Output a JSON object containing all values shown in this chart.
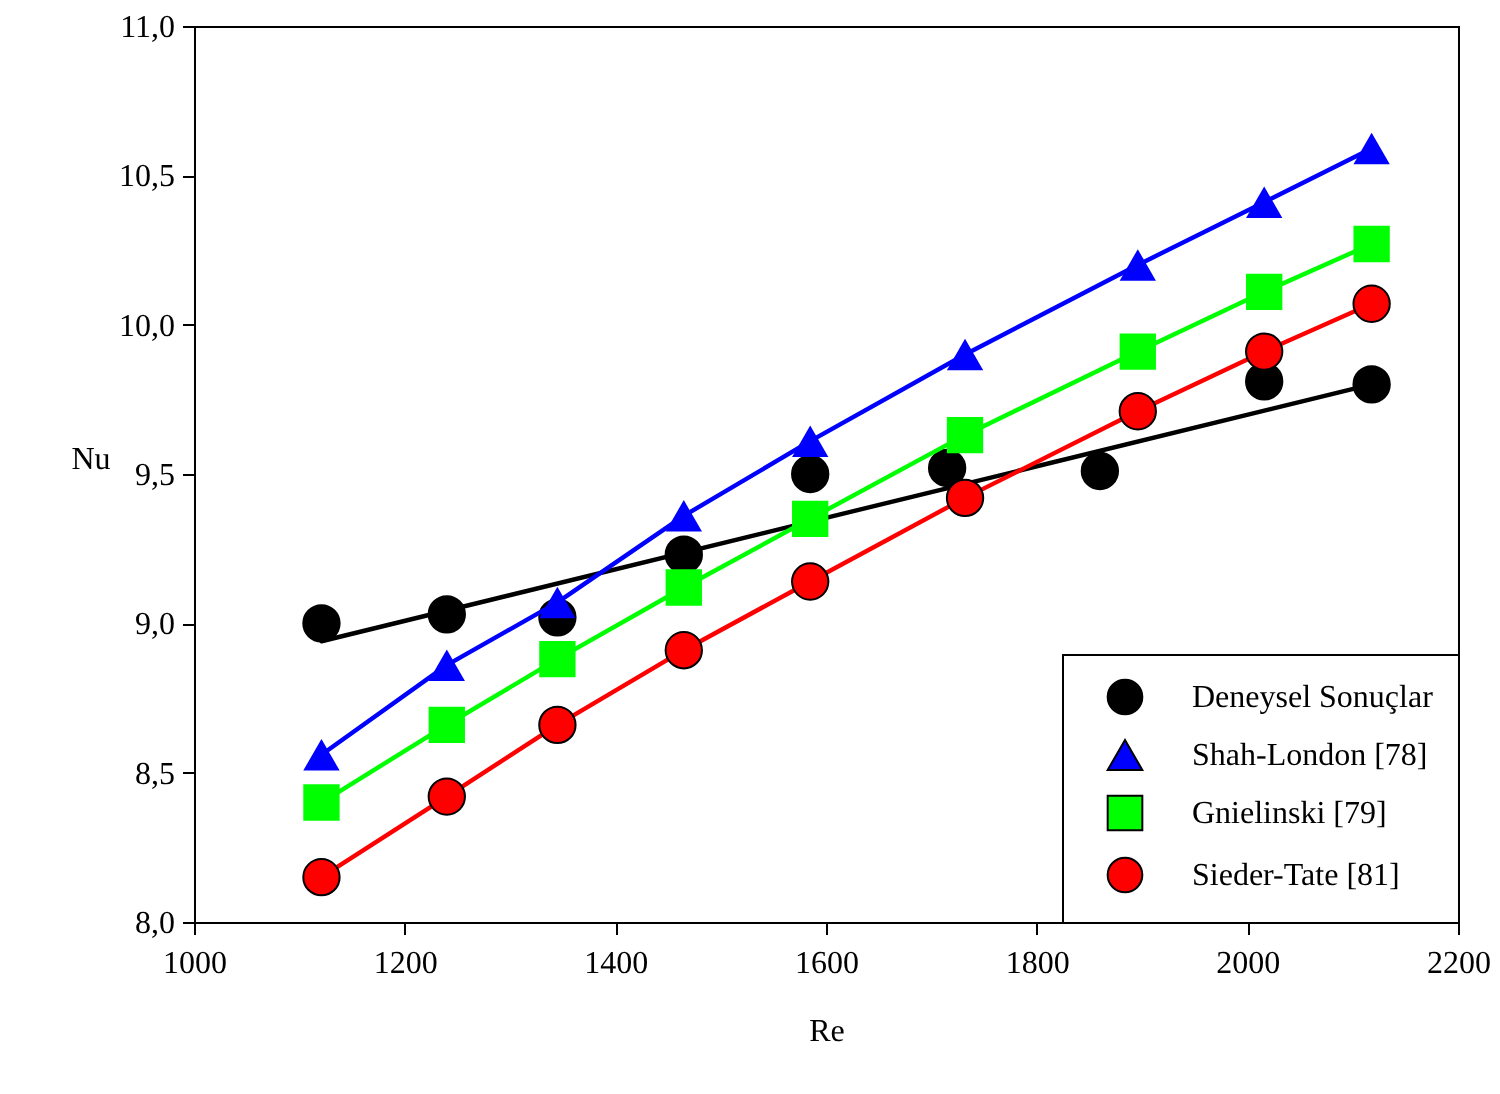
{
  "chart_data": {
    "type": "line",
    "xlabel": "Re",
    "ylabel": "Nu",
    "xlim": [
      1000,
      2200
    ],
    "xticks": [
      1000,
      1200,
      1400,
      1600,
      1800,
      2000,
      2200
    ],
    "ylim": [
      8,
      11
    ],
    "yticks": [
      {
        "value": 8,
        "label": "8,0"
      },
      {
        "value": 8.5,
        "label": "8,5"
      },
      {
        "value": 9,
        "label": "9,0"
      },
      {
        "value": 9.5,
        "label": "9,5"
      },
      {
        "value": 10,
        "label": "10,0"
      },
      {
        "value": 10.5,
        "label": "10,5"
      },
      {
        "value": 11,
        "label": "11,0"
      }
    ],
    "grid": false,
    "legend": "bottom right",
    "line_style": "solid",
    "series": [
      {
        "name": "Deneysel Sonuçlar",
        "type": "scatter",
        "marker": "circle",
        "color": "#000000",
        "x": [
          1121,
          1240,
          1345,
          1465,
          1585,
          1715,
          1860,
          2016,
          2118
        ],
        "values": [
          9.0,
          9.03,
          9.02,
          9.23,
          9.5,
          9.52,
          9.51,
          9.81,
          9.8
        ]
      },
      {
        "type": "line",
        "marker": "none",
        "color": "#000000",
        "x": [
          1121,
          2118
        ],
        "values": [
          8.94,
          9.8
        ]
      },
      {
        "name": "Shah-London [78]",
        "type": "line",
        "marker": "triangle",
        "color": "#0000ff",
        "x": [
          1121,
          1240,
          1345,
          1465,
          1585,
          1732,
          1896,
          2016,
          2118
        ],
        "values": [
          8.56,
          8.86,
          9.07,
          9.36,
          9.61,
          9.9,
          10.2,
          10.41,
          10.59
        ]
      },
      {
        "name": "Gnielinski [79]",
        "type": "line",
        "marker": "square",
        "color": "#00ff00",
        "x": [
          1121,
          1240,
          1345,
          1465,
          1585,
          1732,
          1896,
          2016,
          2118
        ],
        "values": [
          8.4,
          8.66,
          8.88,
          9.12,
          9.35,
          9.63,
          9.91,
          10.11,
          10.27
        ]
      },
      {
        "name": "Sieder-Tate [81]",
        "type": "line",
        "marker": "circle",
        "color": "#ff0000",
        "x": [
          1121,
          1240,
          1345,
          1465,
          1585,
          1732,
          1896,
          2016,
          2118
        ],
        "values": [
          8.15,
          8.42,
          8.66,
          8.91,
          9.14,
          9.42,
          9.71,
          9.91,
          10.07
        ]
      }
    ]
  }
}
